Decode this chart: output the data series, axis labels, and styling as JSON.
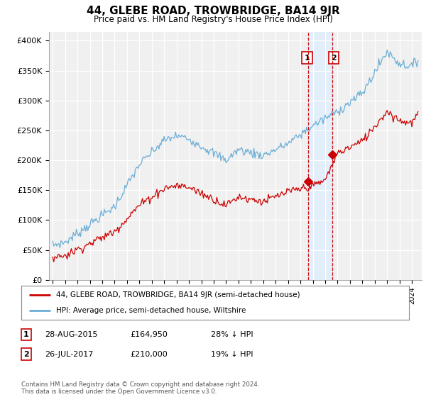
{
  "title": "44, GLEBE ROAD, TROWBRIDGE, BA14 9JR",
  "subtitle": "Price paid vs. HM Land Registry's House Price Index (HPI)",
  "ylabel_ticks": [
    "£0",
    "£50K",
    "£100K",
    "£150K",
    "£200K",
    "£250K",
    "£300K",
    "£350K",
    "£400K"
  ],
  "ytick_values": [
    0,
    50000,
    100000,
    150000,
    200000,
    250000,
    300000,
    350000,
    400000
  ],
  "ylim": [
    0,
    415000
  ],
  "xlim_start": 1994.7,
  "xlim_end": 2024.8,
  "hpi_color": "#6baed6",
  "price_color": "#cc0000",
  "marker1_date": 2015.65,
  "marker1_price": 164950,
  "marker2_date": 2017.56,
  "marker2_price": 210000,
  "legend_label1": "44, GLEBE ROAD, TROWBRIDGE, BA14 9JR (semi-detached house)",
  "legend_label2": "HPI: Average price, semi-detached house, Wiltshire",
  "footnote": "Contains HM Land Registry data © Crown copyright and database right 2024.\nThis data is licensed under the Open Government Licence v3.0.",
  "background_color": "#f0f0f0"
}
